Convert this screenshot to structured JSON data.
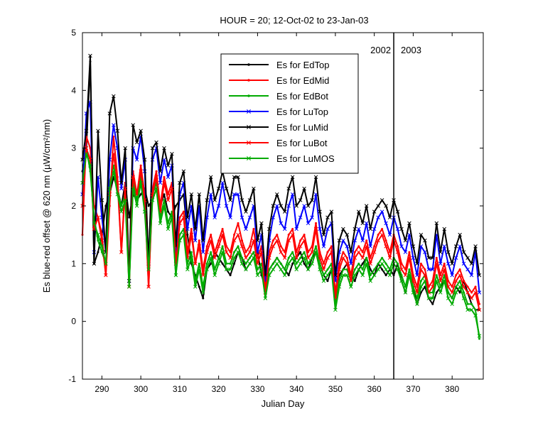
{
  "chart_data": {
    "type": "line",
    "title": "HOUR = 20; 12-Oct-02 to 23-Jan-03",
    "xlabel": "Julian Day",
    "ylabel": "Es blue-red offset @ 620 nm (µW/cm²/nm)",
    "xlim": [
      285,
      388
    ],
    "ylim": [
      -1,
      5
    ],
    "xticks": [
      290,
      300,
      310,
      320,
      330,
      340,
      350,
      360,
      370,
      380
    ],
    "yticks": [
      -1,
      0,
      1,
      2,
      3,
      4,
      5
    ],
    "grid": false,
    "legend_position": "top-center",
    "annotations": [
      {
        "text": "2002",
        "x": 365,
        "side": "left"
      },
      {
        "text": "2003",
        "x": 365,
        "side": "right"
      }
    ],
    "vline_x": 365,
    "x": [
      285,
      286,
      287,
      288,
      289,
      290,
      291,
      292,
      293,
      294,
      295,
      296,
      297,
      298,
      299,
      300,
      301,
      302,
      303,
      304,
      305,
      306,
      307,
      308,
      309,
      310,
      311,
      312,
      313,
      314,
      315,
      316,
      317,
      318,
      319,
      320,
      321,
      322,
      323,
      324,
      325,
      326,
      327,
      328,
      329,
      330,
      331,
      332,
      333,
      334,
      335,
      336,
      337,
      338,
      339,
      340,
      341,
      342,
      343,
      344,
      345,
      346,
      347,
      348,
      349,
      350,
      351,
      352,
      353,
      354,
      355,
      356,
      357,
      358,
      359,
      360,
      361,
      362,
      363,
      364,
      365,
      366,
      367,
      368,
      369,
      370,
      371,
      372,
      373,
      374,
      375,
      376,
      377,
      378,
      379,
      380,
      381,
      382,
      383,
      384,
      385,
      386,
      387
    ],
    "series": [
      {
        "name": "Es for EdTop",
        "color": "#000000",
        "marker": "dot",
        "values": [
          2.6,
          3.0,
          4.5,
          1.0,
          1.2,
          1.5,
          2.0,
          2.2,
          2.5,
          2.3,
          2.0,
          2.4,
          1.8,
          2.2,
          2.1,
          2.2,
          2.3,
          2.0,
          2.1,
          2.3,
          2.0,
          2.2,
          1.9,
          1.8,
          2.0,
          2.1,
          2.2,
          1.5,
          1.0,
          0.8,
          0.6,
          0.4,
          0.9,
          1.0,
          1.2,
          1.1,
          1.0,
          0.9,
          0.8,
          1.0,
          1.2,
          1.1,
          0.9,
          1.0,
          1.1,
          1.2,
          0.8,
          0.6,
          0.9,
          1.0,
          1.1,
          1.0,
          0.9,
          0.8,
          1.0,
          1.1,
          1.2,
          1.0,
          0.9,
          1.1,
          1.2,
          1.0,
          0.8,
          0.7,
          0.9,
          0.5,
          0.8,
          0.9,
          1.0,
          0.8,
          0.7,
          0.9,
          1.0,
          1.1,
          0.9,
          0.8,
          1.0,
          0.9,
          0.8,
          0.9,
          0.8,
          1.0,
          0.7,
          0.5,
          0.8,
          0.6,
          0.3,
          0.5,
          0.6,
          0.4,
          0.3,
          0.5,
          0.6,
          0.7,
          0.5,
          0.4,
          0.6,
          0.5,
          0.7,
          0.5,
          0.3,
          0.2,
          0.2
        ]
      },
      {
        "name": "Es for EdMid",
        "color": "#ff0000",
        "marker": "dot",
        "values": [
          1.5,
          3.2,
          3.0,
          2.0,
          1.8,
          1.5,
          0.8,
          2.0,
          3.2,
          2.5,
          1.2,
          2.4,
          0.6,
          2.6,
          2.2,
          2.7,
          2.2,
          0.6,
          2.3,
          2.6,
          2.0,
          2.5,
          2.2,
          2.4,
          1.0,
          1.8,
          1.9,
          1.2,
          1.6,
          1.0,
          1.4,
          0.9,
          1.3,
          1.5,
          1.2,
          1.4,
          1.6,
          1.3,
          1.2,
          1.5,
          1.7,
          1.4,
          1.2,
          1.3,
          1.6,
          1.1,
          1.3,
          0.6,
          1.2,
          1.4,
          1.5,
          1.3,
          1.2,
          1.5,
          1.6,
          1.2,
          1.4,
          1.5,
          1.2,
          1.3,
          1.7,
          1.2,
          1.0,
          1.2,
          1.3,
          0.5,
          1.0,
          1.2,
          1.1,
          0.8,
          1.2,
          1.3,
          1.2,
          1.4,
          1.1,
          1.3,
          1.5,
          1.6,
          1.4,
          1.2,
          1.5,
          1.3,
          1.0,
          0.9,
          1.2,
          0.8,
          0.6,
          1.0,
          0.9,
          0.6,
          0.7,
          1.1,
          0.8,
          1.0,
          0.7,
          0.6,
          0.8,
          0.9,
          0.7,
          0.6,
          0.5,
          0.6,
          0.3
        ]
      },
      {
        "name": "Es for EdBot",
        "color": "#00aa00",
        "marker": "dot",
        "values": [
          2.8,
          3.0,
          2.6,
          1.8,
          1.4,
          1.2,
          1.0,
          2.4,
          2.7,
          2.3,
          2.0,
          2.2,
          0.7,
          2.4,
          2.1,
          2.5,
          2.0,
          1.0,
          2.2,
          2.4,
          1.8,
          2.1,
          1.7,
          1.9,
          0.8,
          1.5,
          1.6,
          1.0,
          1.2,
          0.7,
          1.0,
          0.6,
          1.0,
          1.2,
          0.9,
          1.1,
          1.3,
          1.0,
          1.0,
          1.2,
          1.3,
          1.1,
          1.0,
          1.1,
          1.2,
          0.9,
          1.0,
          0.5,
          0.9,
          1.0,
          1.1,
          1.0,
          0.9,
          1.1,
          1.2,
          1.0,
          1.1,
          1.2,
          1.0,
          1.1,
          1.3,
          1.0,
          0.8,
          0.9,
          1.0,
          0.3,
          0.7,
          0.9,
          0.9,
          0.7,
          0.9,
          1.0,
          0.9,
          1.1,
          0.8,
          0.9,
          1.0,
          1.1,
          1.0,
          0.9,
          1.1,
          1.0,
          0.8,
          0.6,
          0.9,
          0.6,
          0.4,
          0.7,
          0.8,
          0.5,
          0.5,
          0.8,
          0.6,
          0.8,
          0.5,
          0.4,
          0.6,
          0.7,
          0.5,
          0.3,
          0.3,
          0.2,
          -0.3
        ]
      },
      {
        "name": "Es for LuTop",
        "color": "#0000ff",
        "marker": "x",
        "values": [
          2.2,
          3.6,
          3.8,
          1.2,
          2.5,
          1.8,
          1.2,
          2.8,
          3.4,
          3.0,
          2.3,
          2.8,
          0.7,
          3.0,
          2.8,
          3.2,
          2.6,
          1.0,
          2.8,
          3.0,
          2.4,
          2.8,
          2.5,
          2.7,
          1.2,
          2.2,
          2.4,
          1.6,
          2.0,
          1.4,
          2.0,
          1.2,
          1.8,
          2.2,
          1.8,
          2.0,
          2.4,
          2.0,
          1.8,
          2.2,
          2.2,
          1.8,
          1.6,
          1.8,
          2.0,
          1.2,
          1.5,
          0.7,
          1.4,
          1.8,
          2.0,
          1.7,
          1.6,
          2.0,
          2.2,
          1.6,
          1.8,
          2.0,
          1.7,
          1.8,
          2.2,
          1.6,
          1.3,
          1.6,
          1.7,
          0.7,
          1.2,
          1.4,
          1.3,
          1.0,
          1.4,
          1.6,
          1.4,
          1.7,
          1.3,
          1.6,
          1.8,
          1.9,
          1.7,
          1.5,
          1.8,
          1.6,
          1.3,
          1.2,
          1.5,
          1.1,
          0.8,
          1.3,
          1.2,
          0.9,
          0.9,
          1.5,
          1.0,
          1.3,
          1.0,
          0.8,
          1.1,
          1.3,
          1.0,
          0.9,
          0.8,
          1.2,
          0.5
        ]
      },
      {
        "name": "Es for LuMid",
        "color": "#000000",
        "marker": "x",
        "values": [
          2.8,
          3.3,
          4.6,
          1.0,
          3.3,
          2.1,
          1.2,
          3.6,
          3.9,
          3.3,
          2.4,
          3.0,
          0.7,
          3.4,
          3.1,
          3.3,
          2.8,
          1.0,
          3.0,
          3.1,
          2.6,
          3.0,
          2.7,
          2.9,
          1.3,
          2.4,
          2.6,
          1.8,
          2.2,
          1.6,
          2.2,
          1.4,
          2.1,
          2.5,
          2.1,
          2.3,
          2.6,
          2.3,
          2.1,
          2.5,
          2.5,
          2.1,
          1.9,
          2.1,
          2.3,
          1.4,
          1.7,
          0.8,
          1.6,
          2.0,
          2.2,
          2.0,
          1.9,
          2.3,
          2.5,
          2.0,
          2.1,
          2.3,
          2.0,
          2.1,
          2.5,
          1.9,
          1.5,
          1.8,
          1.9,
          0.8,
          1.4,
          1.6,
          1.5,
          1.2,
          1.6,
          1.9,
          1.7,
          2.0,
          1.6,
          1.9,
          2.0,
          2.1,
          2.0,
          1.8,
          2.1,
          1.9,
          1.6,
          1.4,
          1.7,
          1.3,
          1.0,
          1.5,
          1.4,
          1.1,
          1.1,
          1.7,
          1.2,
          1.6,
          1.2,
          1.0,
          1.3,
          1.5,
          1.2,
          1.1,
          1.0,
          1.3,
          0.8
        ]
      },
      {
        "name": "Es for LuBot",
        "color": "#ff0000",
        "marker": "x",
        "values": [
          2.0,
          3.0,
          2.8,
          1.6,
          1.8,
          1.4,
          0.8,
          2.2,
          2.9,
          2.4,
          1.2,
          2.3,
          0.6,
          2.5,
          2.2,
          2.6,
          2.1,
          0.6,
          2.2,
          2.5,
          1.9,
          2.4,
          2.1,
          2.3,
          1.0,
          1.7,
          1.8,
          1.1,
          1.5,
          1.0,
          1.3,
          0.8,
          1.2,
          1.4,
          1.1,
          1.3,
          1.5,
          1.2,
          1.1,
          1.4,
          1.5,
          1.3,
          1.1,
          1.2,
          1.4,
          1.0,
          1.2,
          0.5,
          1.1,
          1.3,
          1.4,
          1.2,
          1.1,
          1.4,
          1.5,
          1.1,
          1.3,
          1.4,
          1.1,
          1.2,
          1.6,
          1.1,
          0.9,
          1.1,
          1.2,
          0.4,
          0.9,
          1.1,
          1.0,
          0.7,
          1.1,
          1.2,
          1.1,
          1.3,
          1.0,
          1.2,
          1.4,
          1.5,
          1.3,
          1.1,
          1.4,
          1.2,
          0.9,
          0.8,
          1.1,
          0.7,
          0.5,
          0.9,
          0.8,
          0.5,
          0.6,
          1.0,
          0.7,
          0.9,
          0.6,
          0.5,
          0.7,
          0.8,
          0.6,
          0.5,
          0.4,
          0.5,
          0.2
        ]
      },
      {
        "name": "Es for LuMOS",
        "color": "#00aa00",
        "marker": "x",
        "values": [
          2.4,
          2.9,
          2.7,
          1.7,
          1.5,
          1.3,
          1.0,
          2.3,
          2.6,
          2.2,
          1.9,
          2.1,
          0.6,
          2.3,
          2.0,
          2.4,
          1.9,
          0.9,
          2.1,
          2.3,
          1.7,
          2.0,
          1.6,
          1.8,
          0.8,
          1.4,
          1.5,
          0.9,
          1.1,
          0.6,
          0.9,
          0.5,
          0.9,
          1.1,
          0.8,
          1.0,
          1.2,
          0.9,
          0.9,
          1.1,
          1.2,
          1.0,
          0.9,
          1.0,
          1.1,
          0.8,
          0.9,
          0.4,
          0.8,
          0.9,
          1.0,
          0.9,
          0.8,
          1.0,
          1.1,
          0.9,
          1.0,
          1.1,
          0.9,
          1.0,
          1.2,
          0.9,
          0.7,
          0.8,
          0.9,
          0.2,
          0.6,
          0.8,
          0.8,
          0.6,
          0.8,
          0.9,
          0.8,
          1.0,
          0.7,
          0.8,
          0.9,
          1.0,
          0.9,
          0.8,
          1.0,
          0.9,
          0.7,
          0.5,
          0.8,
          0.5,
          0.3,
          0.6,
          0.7,
          0.4,
          0.4,
          0.7,
          0.5,
          0.7,
          0.4,
          0.3,
          0.5,
          0.6,
          0.4,
          0.2,
          0.2,
          0.1,
          -0.25
        ]
      }
    ]
  }
}
